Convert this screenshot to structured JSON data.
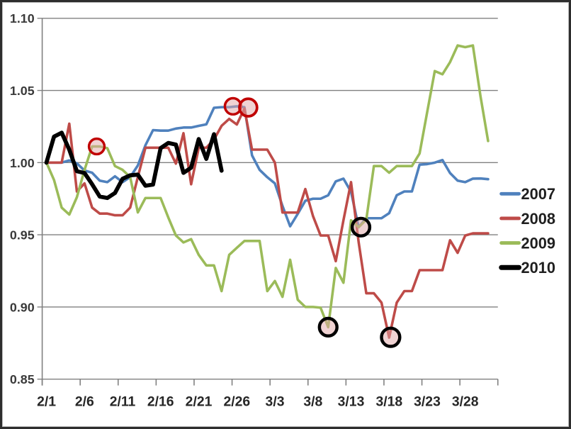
{
  "chart_data": {
    "type": "line",
    "title": "",
    "xlabel": "",
    "ylabel": "",
    "grid": true,
    "legend_position": "right",
    "x_axis": {
      "start_label": "2/1",
      "tick_step_days": 5,
      "tick_labels": [
        "2/1",
        "2/6",
        "2/11",
        "2/16",
        "2/21",
        "2/26",
        "3/3",
        "3/8",
        "3/13",
        "3/18",
        "3/23",
        "3/28"
      ]
    },
    "y_axis": {
      "min": 0.85,
      "max": 1.1,
      "tick_labels": [
        "1.10",
        "1.05",
        "1.00",
        "0.95",
        "0.90",
        "0.85"
      ]
    },
    "style": {
      "grid_color": "#808080",
      "axis_color": "#808080",
      "x_label_color": "#262626",
      "y_label_color": "#3a3a3a",
      "legend_text_color": "#1f1f1f",
      "background": "#ffffff"
    },
    "series": [
      {
        "name": "2007",
        "color": "#4F81BD",
        "line_width": 3.6,
        "values": [
          1.0,
          1.0,
          1.0,
          1.0015,
          0.9995,
          0.9945,
          0.993,
          0.9875,
          0.9865,
          0.9905,
          0.9865,
          0.99,
          0.998,
          1.012,
          1.0225,
          1.0222,
          1.0222,
          1.0236,
          1.0243,
          1.0243,
          1.0255,
          1.0265,
          1.038,
          1.0384,
          1.0384,
          1.039,
          1.0384,
          1.005,
          0.995,
          0.9899,
          0.9856,
          0.97,
          0.9559,
          0.9645,
          0.9736,
          0.975,
          0.975,
          0.9774,
          0.987,
          0.9889,
          0.9798,
          0.9553,
          0.9615,
          0.9615,
          0.9615,
          0.965,
          0.9774,
          0.98,
          0.98,
          0.9986,
          0.999,
          1.0,
          1.0018,
          0.9928,
          0.9875,
          0.9865,
          0.9889,
          0.989,
          0.9885
        ]
      },
      {
        "name": "2008",
        "color": "#BE4B48",
        "line_width": 3.6,
        "values": [
          1.0,
          1.0,
          1.0,
          1.027,
          0.98,
          0.9856,
          0.9688,
          0.9647,
          0.9647,
          0.9635,
          0.9635,
          0.9688,
          0.99,
          1.0103,
          1.0103,
          1.0103,
          1.0103,
          0.9993,
          1.0204,
          0.985,
          1.0103,
          1.0103,
          1.016,
          1.0255,
          1.0303,
          1.0264,
          1.0375,
          1.009,
          1.009,
          1.009,
          1.0,
          0.9654,
          0.9654,
          0.9654,
          0.9817,
          0.963,
          0.9495,
          0.9495,
          0.9317,
          0.96,
          0.9865,
          0.945,
          0.9095,
          0.9095,
          0.903,
          0.8788,
          0.903,
          0.911,
          0.911,
          0.9255,
          0.9255,
          0.9255,
          0.9255,
          0.9462,
          0.9375,
          0.9495,
          0.951,
          0.951,
          0.951
        ]
      },
      {
        "name": "2009",
        "color": "#9BBB59",
        "line_width": 3.6,
        "values": [
          1.0,
          0.988,
          0.9688,
          0.964,
          0.976,
          0.995,
          1.0112,
          1.0112,
          1.01,
          0.9976,
          0.995,
          0.99,
          0.9655,
          0.9755,
          0.9755,
          0.9755,
          0.962,
          0.9495,
          0.9447,
          0.947,
          0.9361,
          0.9288,
          0.9288,
          0.911,
          0.9361,
          0.941,
          0.9457,
          0.9457,
          0.9457,
          0.911,
          0.918,
          0.907,
          0.9327,
          0.905,
          0.9,
          0.9,
          0.8995,
          0.886,
          0.927,
          0.9168,
          0.96,
          0.9553,
          0.9605,
          0.9976,
          0.9976,
          0.993,
          0.9976,
          0.9976,
          0.9976,
          1.0063,
          1.035,
          1.0634,
          1.0612,
          1.0696,
          1.0812,
          1.08,
          1.0812,
          1.046,
          1.015
        ]
      },
      {
        "name": "2010",
        "color": "#000000",
        "line_width": 5.8,
        "values": [
          1.0,
          1.018,
          1.0207,
          1.009,
          0.994,
          0.9928,
          0.985,
          0.9765,
          0.9755,
          0.979,
          0.9888,
          0.9912,
          0.9917,
          0.984,
          0.9848,
          1.01,
          1.0136,
          1.0125,
          0.9929,
          0.9965,
          1.0163,
          1.0026,
          1.0197,
          0.9944
        ]
      }
    ],
    "annotations": [
      {
        "shape": "circle",
        "outline": "#C00000",
        "outline_width": 3.5,
        "fill": "rgba(226,168,168,0.5)",
        "day": 6.6,
        "value": 1.0112,
        "radius": 11,
        "meaning": "2009 local peak circled"
      },
      {
        "shape": "circle",
        "outline": "#C00000",
        "outline_width": 3.5,
        "fill": "rgba(226,168,168,0.5)",
        "day": 24.5,
        "value": 1.039,
        "radius": 11.5,
        "meaning": "2007 peak circled"
      },
      {
        "shape": "circle",
        "outline": "#C00000",
        "outline_width": 3.8,
        "fill": "rgba(226,168,168,0.5)",
        "day": 26.5,
        "value": 1.0382,
        "radius": 12.5,
        "meaning": "2008/2007 peak circled"
      },
      {
        "shape": "circle",
        "outline": "#000000",
        "outline_width": 4.5,
        "fill": "rgba(226,168,168,0.5)",
        "day": 41.3,
        "value": 0.9553,
        "radius": 12.5,
        "meaning": "2007 dip circled"
      },
      {
        "shape": "circle",
        "outline": "#000000",
        "outline_width": 4.5,
        "fill": "rgba(226,168,168,0.5)",
        "day": 37.0,
        "value": 0.886,
        "radius": 12.5,
        "meaning": "2009 low circled"
      },
      {
        "shape": "circle",
        "outline": "#000000",
        "outline_width": 4.5,
        "fill": "rgba(226,168,168,0.5)",
        "day": 45.2,
        "value": 0.879,
        "radius": 13,
        "meaning": "2008 low circled"
      }
    ]
  }
}
